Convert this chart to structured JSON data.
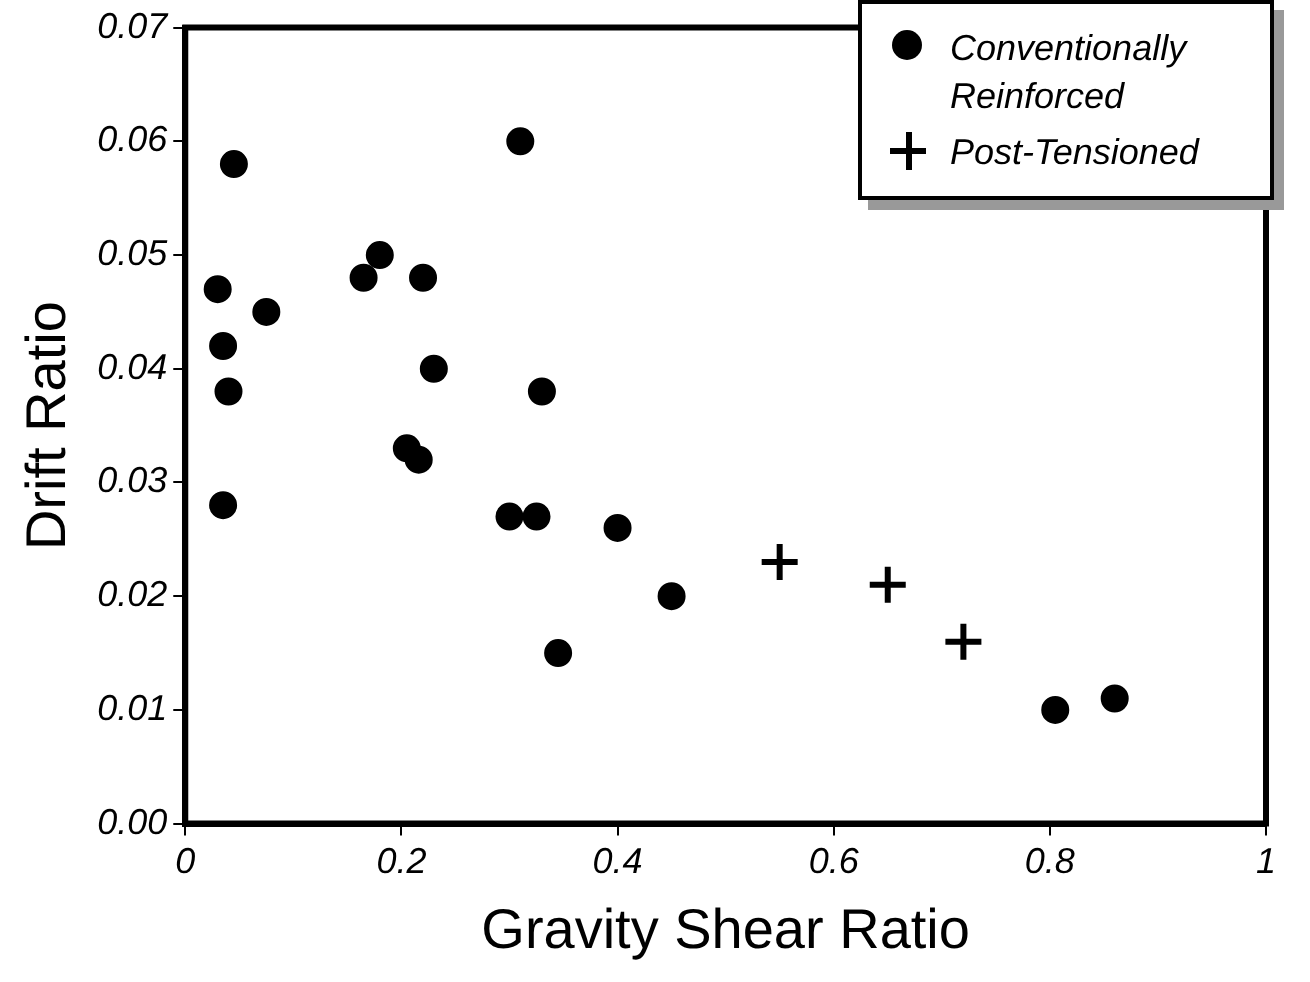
{
  "chart_data": {
    "type": "scatter",
    "xlabel": "Gravity Shear Ratio",
    "ylabel": "Drift Ratio",
    "xlim": [
      0,
      1
    ],
    "xticks": [
      0,
      0.2,
      0.4,
      0.6,
      0.8,
      1
    ],
    "ylim": [
      0,
      0.07
    ],
    "yticks": [
      {
        "value": 0,
        "label": "0.00"
      },
      {
        "value": 0.01,
        "label": "0.01"
      },
      {
        "value": 0.02,
        "label": "0.02"
      },
      {
        "value": 0.03,
        "label": "0.03"
      },
      {
        "value": 0.04,
        "label": "0.04"
      },
      {
        "value": 0.05,
        "label": "0.05"
      },
      {
        "value": 0.06,
        "label": "0.06"
      },
      {
        "value": 0.07,
        "label": "0.07"
      }
    ],
    "grid": false,
    "legend": "top right",
    "series": [
      {
        "name": "Conventionally Reinforced",
        "color": "#000000",
        "marker": "circle",
        "x": [
          0.03,
          0.035,
          0.04,
          0.035,
          0.045,
          0.075,
          0.165,
          0.18,
          0.22,
          0.23,
          0.205,
          0.216,
          0.31,
          0.33,
          0.3,
          0.325,
          0.4,
          0.345,
          0.45,
          0.805,
          0.86
        ],
        "values": [
          0.047,
          0.042,
          0.038,
          0.028,
          0.058,
          0.045,
          0.048,
          0.05,
          0.048,
          0.04,
          0.033,
          0.032,
          0.06,
          0.038,
          0.027,
          0.027,
          0.026,
          0.015,
          0.02,
          0.01,
          0.011
        ]
      },
      {
        "name": "Post-Tensioned",
        "color": "#000000",
        "marker": "cross",
        "x": [
          0.55,
          0.65,
          0.72
        ],
        "values": [
          0.023,
          0.021,
          0.016
        ]
      }
    ]
  }
}
